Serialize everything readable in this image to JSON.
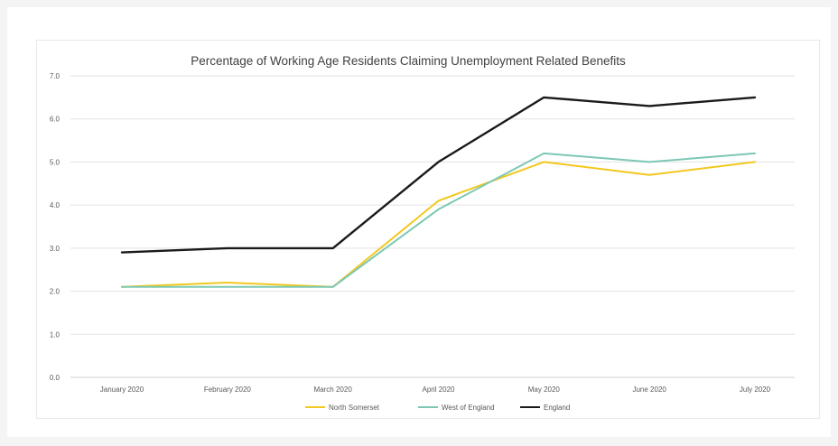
{
  "chart_data": {
    "type": "line",
    "title": "Percentage of Working Age Residents Claiming Unemployment Related Benefits",
    "xlabel": "",
    "ylabel": "",
    "categories": [
      "January 2020",
      "February 2020",
      "March 2020",
      "April 2020",
      "May 2020",
      "June 2020",
      "July 2020"
    ],
    "ylim": [
      0,
      7
    ],
    "yticks": [
      "0.0",
      "1.0",
      "2.0",
      "3.0",
      "4.0",
      "5.0",
      "6.0",
      "7.0"
    ],
    "grid": true,
    "legend_position": "bottom",
    "series": [
      {
        "name": "North Somerset",
        "color": "#f2c81e",
        "values": [
          2.1,
          2.2,
          2.1,
          4.1,
          5.0,
          4.7,
          5.0
        ]
      },
      {
        "name": "West of England",
        "color": "#7cc8b4",
        "values": [
          2.1,
          2.1,
          2.1,
          3.9,
          5.2,
          5.0,
          5.2
        ]
      },
      {
        "name": "England",
        "color": "#1a1a1a",
        "values": [
          2.9,
          3.0,
          3.0,
          5.0,
          6.5,
          6.3,
          6.5
        ]
      }
    ]
  }
}
